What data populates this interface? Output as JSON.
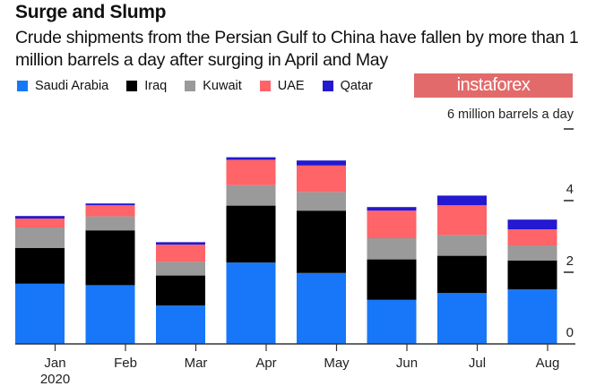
{
  "chart_data": {
    "type": "bar",
    "stacked": true,
    "title": "Surge and Slump",
    "subtitle": "Crude shipments from the Persian Gulf to China have fallen by more than 1 million barrels a day after surging in April and May",
    "unit_label": "6 million barrels a day",
    "categories": [
      "Jan",
      "Feb",
      "Mar",
      "Apr",
      "May",
      "Jun",
      "Jul",
      "Aug"
    ],
    "first_category_sublabel": "2020",
    "series": [
      {
        "name": "Saudi Arabia",
        "color": "#1777f8",
        "values": [
          1.68,
          1.64,
          1.07,
          2.27,
          1.98,
          1.23,
          1.42,
          1.52
        ]
      },
      {
        "name": "Iraq",
        "color": "#000000",
        "values": [
          1.0,
          1.53,
          0.84,
          1.59,
          1.74,
          1.13,
          1.04,
          0.81
        ]
      },
      {
        "name": "Kuwait",
        "color": "#9a9a9a",
        "values": [
          0.57,
          0.39,
          0.38,
          0.57,
          0.52,
          0.59,
          0.58,
          0.42
        ]
      },
      {
        "name": "UAE",
        "color": "#fe6468",
        "values": [
          0.25,
          0.31,
          0.48,
          0.71,
          0.74,
          0.77,
          0.83,
          0.45
        ]
      },
      {
        "name": "Qatar",
        "color": "#2418d0",
        "values": [
          0.07,
          0.05,
          0.07,
          0.07,
          0.14,
          0.1,
          0.27,
          0.27
        ]
      }
    ],
    "yticks": [
      "0",
      "2",
      "4",
      "6"
    ],
    "ylim": [
      0,
      6
    ],
    "y_axis_position": "right",
    "legend_position": "top-left",
    "grid": false
  },
  "watermark": "instaforex"
}
